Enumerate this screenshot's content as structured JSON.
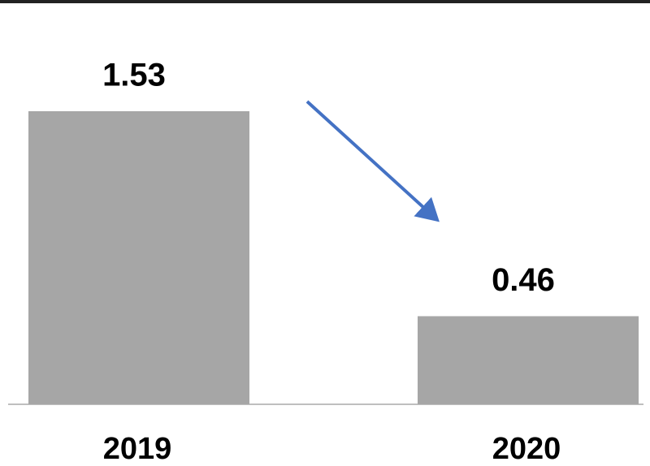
{
  "chart_data": {
    "type": "bar",
    "categories": [
      "2019",
      "2020"
    ],
    "values": [
      1.53,
      0.46
    ],
    "color": "#a6a6a6"
  }
}
